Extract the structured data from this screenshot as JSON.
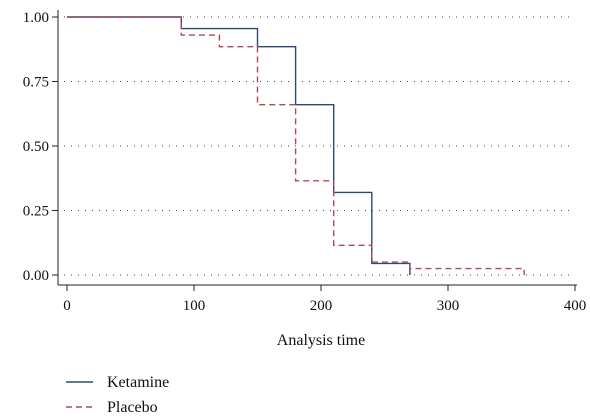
{
  "chart_data": {
    "type": "line",
    "subtype": "step",
    "title": "",
    "xlabel": "Analysis time",
    "ylabel": "",
    "xlim": [
      0,
      400
    ],
    "ylim": [
      0,
      1
    ],
    "x_ticks": [
      0,
      100,
      200,
      300,
      400
    ],
    "x_tick_labels": [
      "0",
      "100",
      "200",
      "300",
      "400"
    ],
    "y_ticks": [
      0,
      0.25,
      0.5,
      0.75,
      1
    ],
    "y_tick_labels": [
      "0.00",
      "0.25",
      "0.50",
      "0.75",
      "1.00"
    ],
    "grid": {
      "horizontal": true,
      "vertical": false,
      "style": "dotted"
    },
    "legend_position": "bottom-left",
    "series": [
      {
        "name": "Ketamine",
        "color": "#2b4a78",
        "line_style": "solid",
        "x": [
          0,
          90,
          150,
          180,
          210,
          240,
          270
        ],
        "y": [
          1.0,
          0.955,
          0.885,
          0.66,
          0.32,
          0.045,
          0.0
        ]
      },
      {
        "name": "Placebo",
        "color": "#b04a52",
        "line_style": "dashed",
        "x": [
          0,
          90,
          120,
          150,
          180,
          210,
          240,
          270,
          360
        ],
        "y": [
          1.0,
          0.93,
          0.885,
          0.66,
          0.365,
          0.115,
          0.05,
          0.025,
          0.0
        ]
      }
    ]
  }
}
